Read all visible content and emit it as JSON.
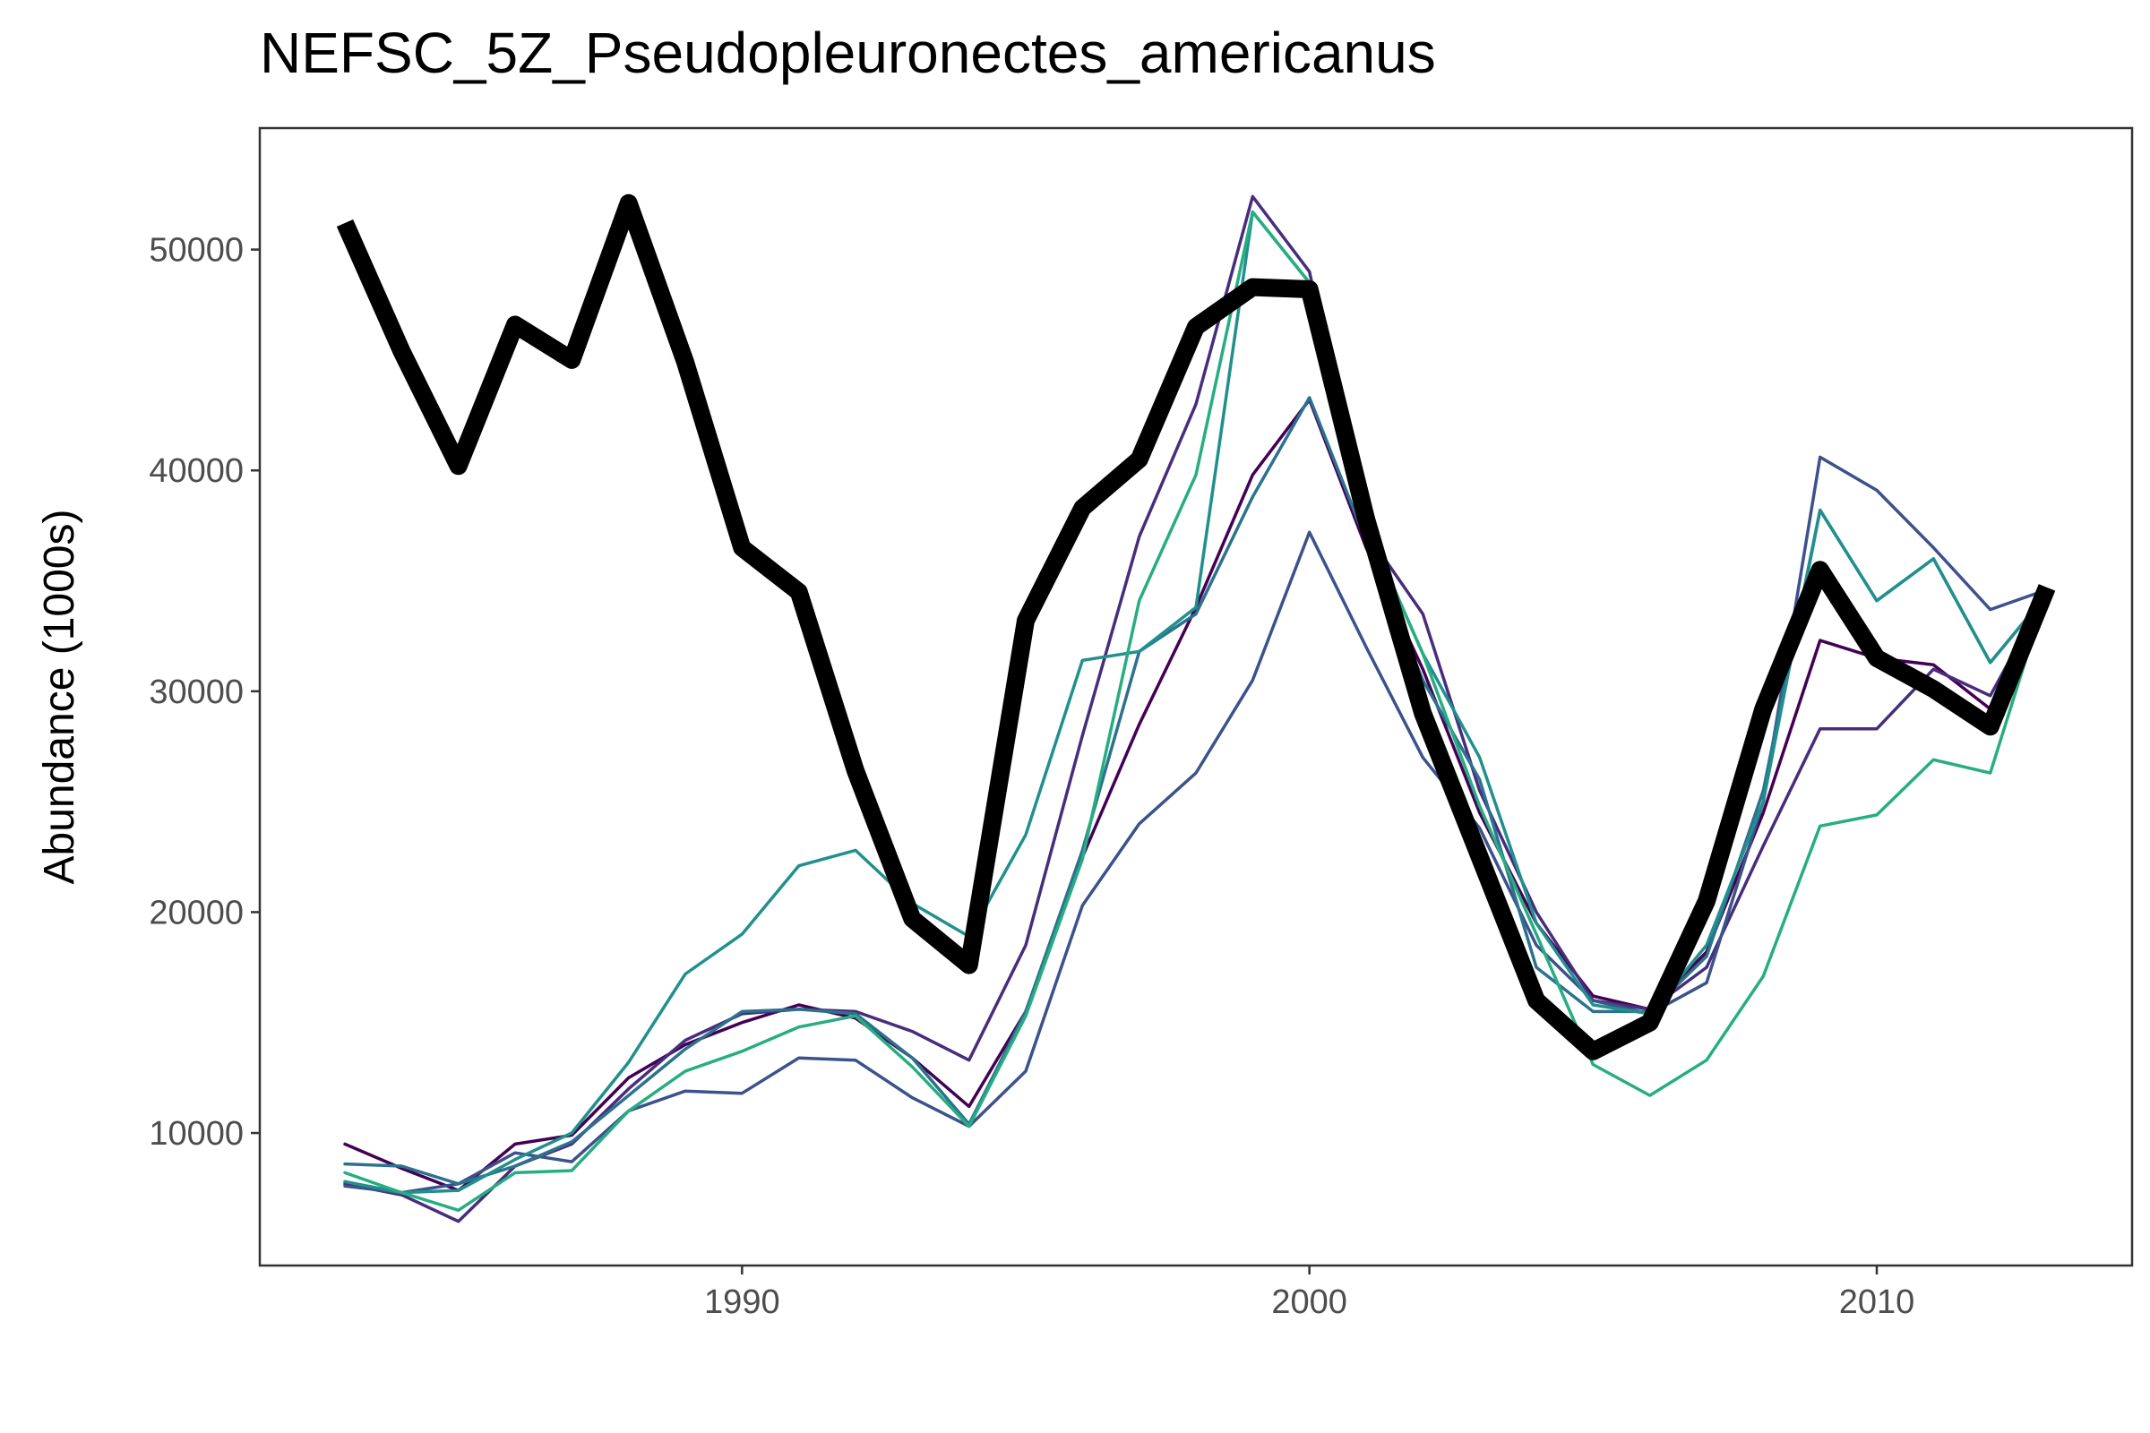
{
  "chart_data": {
    "type": "line",
    "title": "NEFSC_5Z_Pseudopleuronectes_americanus",
    "xlabel": "",
    "ylabel": "Abundance (1000s)",
    "xlim": [
      1981.5,
      2014.5
    ],
    "ylim": [
      4000,
      55500
    ],
    "x_ticks": [
      1990,
      2000,
      2010
    ],
    "y_ticks": [
      10000,
      20000,
      30000,
      40000,
      50000
    ],
    "grid": false,
    "legend": "none",
    "x": [
      1983,
      1984,
      1985,
      1986,
      1987,
      1988,
      1989,
      1990,
      1991,
      1992,
      1993,
      1994,
      1995,
      1996,
      1997,
      1998,
      1999,
      2000,
      2001,
      2002,
      2003,
      2004,
      2005,
      2006,
      2007,
      2008,
      2009,
      2010,
      2011,
      2012,
      2013
    ],
    "series": [
      {
        "color": "#000000",
        "emphasis": true,
        "values": [
          51200,
          45400,
          40200,
          46600,
          45000,
          52100,
          44900,
          36500,
          34500,
          26400,
          19700,
          17600,
          33200,
          38300,
          40500,
          46500,
          48300,
          48200,
          37800,
          29000,
          22500,
          16000,
          13700,
          15000,
          20500,
          29200,
          35500,
          31500,
          30100,
          28400,
          34700
        ]
      },
      {
        "color": "#440154",
        "values": [
          9500,
          8400,
          7400,
          9500,
          9900,
          12500,
          14000,
          15000,
          15800,
          15200,
          13400,
          11200,
          15500,
          22500,
          28500,
          33800,
          39800,
          43200,
          36500,
          31000,
          24500,
          19500,
          16200,
          15600,
          18200,
          24500,
          32300,
          31500,
          31200,
          29200,
          34200
        ]
      },
      {
        "color": "#472d7b",
        "values": [
          7700,
          7200,
          6000,
          8500,
          9500,
          12000,
          14200,
          15400,
          15600,
          15500,
          14600,
          13300,
          18500,
          28000,
          37000,
          43000,
          52400,
          49000,
          37200,
          33500,
          25500,
          20000,
          16000,
          15600,
          17500,
          23000,
          28300,
          28300,
          31000,
          29800,
          34500
        ]
      },
      {
        "color": "#3b528b",
        "values": [
          7600,
          7300,
          7700,
          9100,
          8700,
          11000,
          11900,
          11800,
          13400,
          13300,
          11600,
          10300,
          12800,
          20300,
          24000,
          26300,
          30500,
          37200,
          32000,
          27000,
          23800,
          18500,
          16000,
          15400,
          16800,
          25000,
          40600,
          39100,
          36500,
          33700,
          34600
        ]
      },
      {
        "color": "#2c728e",
        "values": [
          8600,
          8500,
          7700,
          8500,
          9600,
          11700,
          13800,
          15500,
          15600,
          15400,
          13400,
          10400,
          15500,
          22800,
          31800,
          33500,
          38800,
          43300,
          36800,
          30500,
          26000,
          17500,
          15500,
          15500,
          18000,
          25500,
          38200,
          34100,
          36000,
          31300,
          34400
        ]
      },
      {
        "color": "#21908d",
        "values": [
          7800,
          7300,
          7400,
          8800,
          10000,
          13200,
          17200,
          19000,
          22100,
          22800,
          20400,
          18900,
          23500,
          31400,
          31800,
          33800,
          51700,
          48500,
          37500,
          31700,
          27000,
          19500,
          15800,
          15400,
          18500,
          25000,
          38200,
          34100,
          36000,
          31300,
          34400
        ]
      },
      {
        "color": "#27ad81",
        "values": [
          8200,
          7300,
          6500,
          8200,
          8300,
          11000,
          12800,
          13700,
          14800,
          15300,
          13000,
          10300,
          15300,
          22400,
          34100,
          39800,
          51700,
          48500,
          37500,
          31700,
          24800,
          19000,
          13100,
          11700,
          13300,
          17100,
          23900,
          24400,
          26900,
          26300,
          34500
        ]
      }
    ]
  }
}
